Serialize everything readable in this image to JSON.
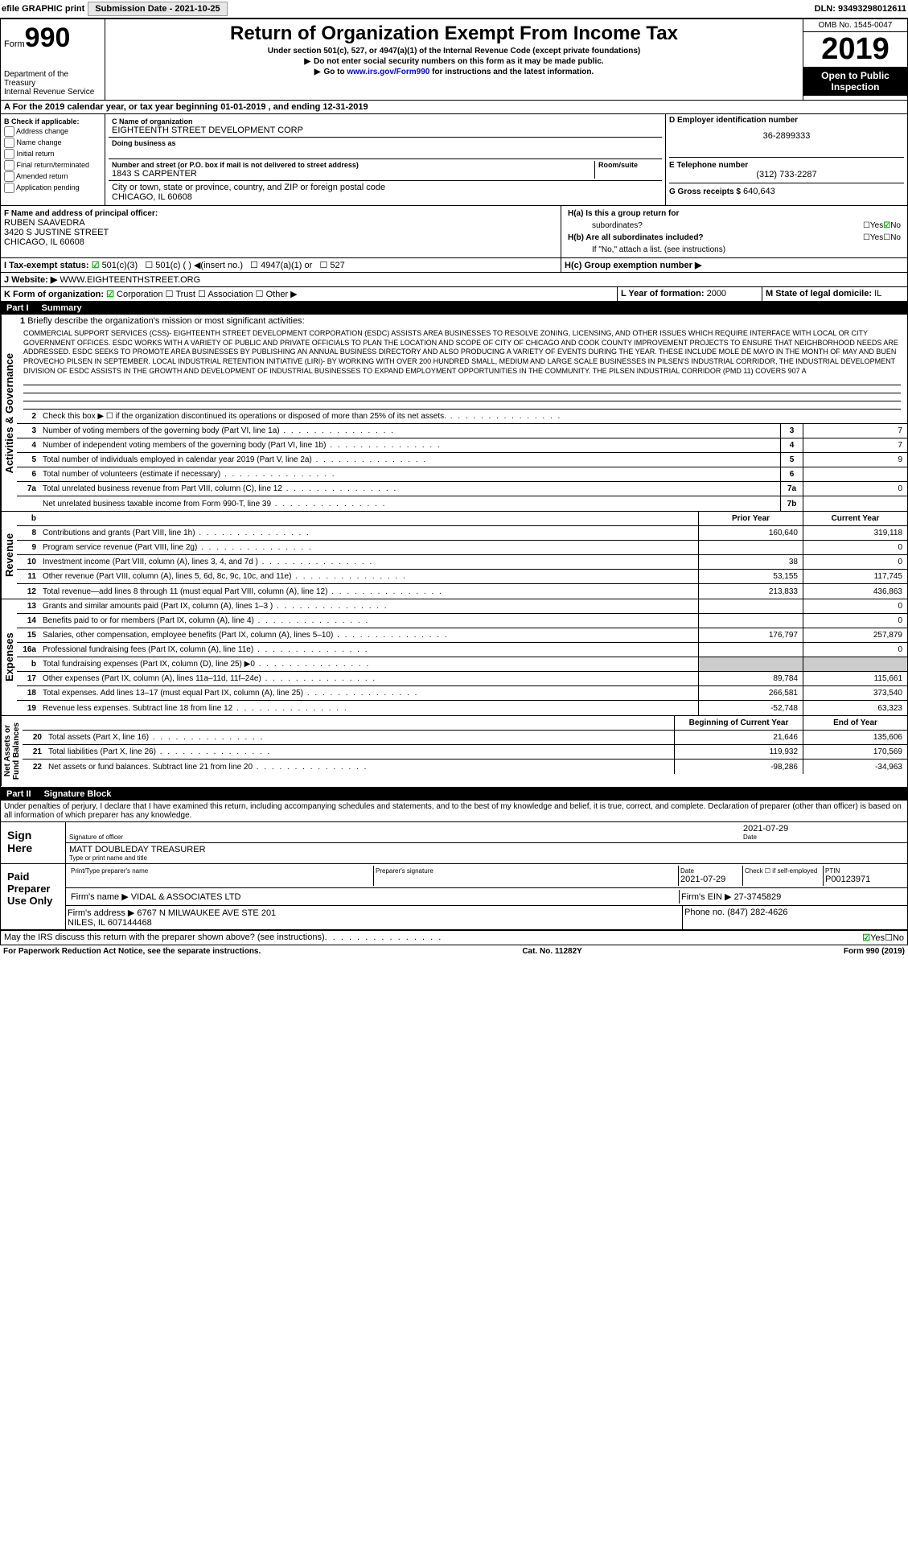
{
  "topbar": {
    "efile": "efile GRAPHIC print",
    "subLabel": "Submission Date - ",
    "subDate": "2021-10-25",
    "dln": "DLN: 93493298012611"
  },
  "header": {
    "formWord": "Form",
    "formNum": "990",
    "dept": "Department of the Treasury\nInternal Revenue Service",
    "title": "Return of Organization Exempt From Income Tax",
    "sub1": "Under section 501(c), 527, or 4947(a)(1) of the Internal Revenue Code (except private foundations)",
    "sub2": "Do not enter social security numbers on this form as it may be made public.",
    "sub3": "Go to www.irs.gov/Form990 for instructions and the latest information.",
    "link": "www.irs.gov/Form990",
    "omb": "OMB No. 1545-0047",
    "year": "2019",
    "insp1": "Open to Public",
    "insp2": "Inspection"
  },
  "secA": "A For the 2019 calendar year, or tax year beginning 01-01-2019   , and ending 12-31-2019",
  "B": {
    "label": "B Check if applicable:",
    "opts": [
      "Address change",
      "Name change",
      "Initial return",
      "Final return/terminated",
      "Amended return",
      "Application pending"
    ]
  },
  "C": {
    "nameLbl": "C Name of organization",
    "name": "EIGHTEENTH STREET DEVELOPMENT CORP",
    "dbaLbl": "Doing business as",
    "dba": "",
    "addrLbl": "Number and street (or P.O. box if mail is not delivered to street address)",
    "roomLbl": "Room/suite",
    "addr": "1843 S CARPENTER",
    "cityLbl": "City or town, state or province, country, and ZIP or foreign postal code",
    "city": "CHICAGO, IL  60608"
  },
  "D": {
    "lbl": "D Employer identification number",
    "val": "36-2899333"
  },
  "E": {
    "lbl": "E Telephone number",
    "val": "(312) 733-2287"
  },
  "G": {
    "lbl": "G Gross receipts $",
    "val": "640,643"
  },
  "F": {
    "lbl": "F  Name and address of principal officer:",
    "name": "RUBEN SAAVEDRA",
    "addr": "3420 S JUSTINE STREET\nCHICAGO, IL  60608"
  },
  "H": {
    "ha": "H(a)  Is this a group return for",
    "ha2": "subordinates?",
    "hb": "H(b)  Are all subordinates included?",
    "hbNote": "If \"No,\" attach a list. (see instructions)",
    "hc": "H(c)  Group exemption number ▶",
    "yes": "Yes",
    "no": "No"
  },
  "I": {
    "lbl": "I  Tax-exempt status:",
    "o1": "501(c)(3)",
    "o2": "501(c) (  ) ◀(insert no.)",
    "o3": "4947(a)(1) or",
    "o4": "527"
  },
  "J": {
    "lbl": "J  Website: ▶",
    "val": "WWW.EIGHTEENTHSTREET.ORG"
  },
  "K": {
    "lbl": "K Form of organization:",
    "opts": [
      "Corporation",
      "Trust",
      "Association",
      "Other ▶"
    ]
  },
  "L": {
    "lbl": "L Year of formation:",
    "val": "2000"
  },
  "M": {
    "lbl": "M State of legal domicile:",
    "val": "IL"
  },
  "part1": {
    "hdr": "Part I",
    "title": "Summary"
  },
  "vert": {
    "ag": "Activities & Governance",
    "rev": "Revenue",
    "exp": "Expenses",
    "na": "Net Assets or\nFund Balances"
  },
  "l1": {
    "num": "1",
    "txt": "Briefly describe the organization's mission or most significant activities:",
    "mission": "COMMERCIAL SUPPORT SERVICES (CSS)- EIGHTEENTH STREET DEVELOPMENT CORPORATION (ESDC) ASSISTS AREA BUSINESSES TO RESOLVE ZONING, LICENSING, AND OTHER ISSUES WHICH REQUIRE INTERFACE WITH LOCAL OR CITY GOVERNMENT OFFICES. ESDC WORKS WITH A VARIETY OF PUBLIC AND PRIVATE OFFICIALS TO PLAN THE LOCATION AND SCOPE OF CITY OF CHICAGO AND COOK COUNTY IMPROVEMENT PROJECTS TO ENSURE THAT NEIGHBORHOOD NEEDS ARE ADDRESSED. ESDC SEEKS TO PROMOTE AREA BUSINESSES BY PUBLISHING AN ANNUAL BUSINESS DIRECTORY AND ALSO PRODUCING A VARIETY OF EVENTS DURING THE YEAR. THESE INCLUDE MOLE DE MAYO IN THE MONTH OF MAY AND BUEN PROVECHO PILSEN IN SEPTEMBER. LOCAL INDUSTRIAL RETENTION INITIATIVE (LIRI)- BY WORKING WITH OVER 200 HUNDRED SMALL, MEDIUM AND LARGE SCALE BUSINESSES IN PILSEN'S INDUSTRIAL CORRIDOR, THE INDUSTRIAL DEVELOPMENT DIVISION OF ESDC ASSISTS IN THE GROWTH AND DEVELOPMENT OF INDUSTRIAL BUSINESSES TO EXPAND EMPLOYMENT OPPORTUNITIES IN THE COMMUNITY. THE PILSEN INDUSTRIAL CORRIDOR (PMD 11) COVERS 907 A"
  },
  "lines": [
    {
      "n": "2",
      "t": "Check this box ▶ ☐ if the organization discontinued its operations or disposed of more than 25% of its net assets."
    },
    {
      "n": "3",
      "t": "Number of voting members of the governing body (Part VI, line 1a)",
      "box": "3",
      "v": "7"
    },
    {
      "n": "4",
      "t": "Number of independent voting members of the governing body (Part VI, line 1b)",
      "box": "4",
      "v": "7"
    },
    {
      "n": "5",
      "t": "Total number of individuals employed in calendar year 2019 (Part V, line 2a)",
      "box": "5",
      "v": "9"
    },
    {
      "n": "6",
      "t": "Total number of volunteers (estimate if necessary)",
      "box": "6",
      "v": ""
    },
    {
      "n": "7a",
      "t": "Total unrelated business revenue from Part VIII, column (C), line 12",
      "box": "7a",
      "v": "0"
    },
    {
      "n": "",
      "t": "Net unrelated business taxable income from Form 990-T, line 39",
      "box": "7b",
      "v": ""
    }
  ],
  "colHdr": {
    "b": "b",
    "prior": "Prior Year",
    "current": "Current Year"
  },
  "rev": [
    {
      "n": "8",
      "t": "Contributions and grants (Part VIII, line 1h)",
      "p": "160,640",
      "c": "319,118"
    },
    {
      "n": "9",
      "t": "Program service revenue (Part VIII, line 2g)",
      "p": "",
      "c": "0"
    },
    {
      "n": "10",
      "t": "Investment income (Part VIII, column (A), lines 3, 4, and 7d )",
      "p": "38",
      "c": "0"
    },
    {
      "n": "11",
      "t": "Other revenue (Part VIII, column (A), lines 5, 6d, 8c, 9c, 10c, and 11e)",
      "p": "53,155",
      "c": "117,745"
    },
    {
      "n": "12",
      "t": "Total revenue—add lines 8 through 11 (must equal Part VIII, column (A), line 12)",
      "p": "213,833",
      "c": "436,863"
    }
  ],
  "exp": [
    {
      "n": "13",
      "t": "Grants and similar amounts paid (Part IX, column (A), lines 1–3 )",
      "p": "",
      "c": "0"
    },
    {
      "n": "14",
      "t": "Benefits paid to or for members (Part IX, column (A), line 4)",
      "p": "",
      "c": "0"
    },
    {
      "n": "15",
      "t": "Salaries, other compensation, employee benefits (Part IX, column (A), lines 5–10)",
      "p": "176,797",
      "c": "257,879"
    },
    {
      "n": "16a",
      "t": "Professional fundraising fees (Part IX, column (A), line 11e)",
      "p": "",
      "c": "0"
    },
    {
      "n": "b",
      "t": "Total fundraising expenses (Part IX, column (D), line 25) ▶0",
      "p": "gray",
      "c": "gray"
    },
    {
      "n": "17",
      "t": "Other expenses (Part IX, column (A), lines 11a–11d, 11f–24e)",
      "p": "89,784",
      "c": "115,661"
    },
    {
      "n": "18",
      "t": "Total expenses. Add lines 13–17 (must equal Part IX, column (A), line 25)",
      "p": "266,581",
      "c": "373,540"
    },
    {
      "n": "19",
      "t": "Revenue less expenses. Subtract line 18 from line 12",
      "p": "-52,748",
      "c": "63,323"
    }
  ],
  "colHdr2": {
    "prior": "Beginning of Current Year",
    "current": "End of Year"
  },
  "na": [
    {
      "n": "20",
      "t": "Total assets (Part X, line 16)",
      "p": "21,646",
      "c": "135,606"
    },
    {
      "n": "21",
      "t": "Total liabilities (Part X, line 26)",
      "p": "119,932",
      "c": "170,569"
    },
    {
      "n": "22",
      "t": "Net assets or fund balances. Subtract line 21 from line 20",
      "p": "-98,286",
      "c": "-34,963"
    }
  ],
  "part2": {
    "hdr": "Part II",
    "title": "Signature Block"
  },
  "penalty": "Under penalties of perjury, I declare that I have examined this return, including accompanying schedules and statements, and to the best of my knowledge and belief, it is true, correct, and complete. Declaration of preparer (other than officer) is based on all information of which preparer has any knowledge.",
  "sign": {
    "here": "Sign Here",
    "sigLbl": "Signature of officer",
    "dateLbl": "Date",
    "date": "2021-07-29",
    "name": "MATT DOUBLEDAY TREASURER",
    "nameLbl": "Type or print name and title"
  },
  "paid": {
    "lbl": "Paid Preparer Use Only",
    "c1": "Print/Type preparer's name",
    "c2": "Preparer's signature",
    "c3": "Date",
    "c3v": "2021-07-29",
    "c4": "Check ☐ if self-employed",
    "c5": "PTIN",
    "c5v": "P00123971",
    "firm": "Firm's name    ▶",
    "firmv": "VIDAL & ASSOCIATES LTD",
    "ein": "Firm's EIN ▶",
    "einv": "27-3745829",
    "addr": "Firm's address ▶",
    "addrv": "6767 N MILWAUKEE AVE STE 201\nNILES, IL  607144468",
    "phone": "Phone no.",
    "phonev": "(847) 282-4626"
  },
  "discuss": "May the IRS discuss this return with the preparer shown above? (see instructions)",
  "footer": {
    "l": "For Paperwork Reduction Act Notice, see the separate instructions.",
    "c": "Cat. No. 11282Y",
    "r": "Form 990 (2019)"
  }
}
